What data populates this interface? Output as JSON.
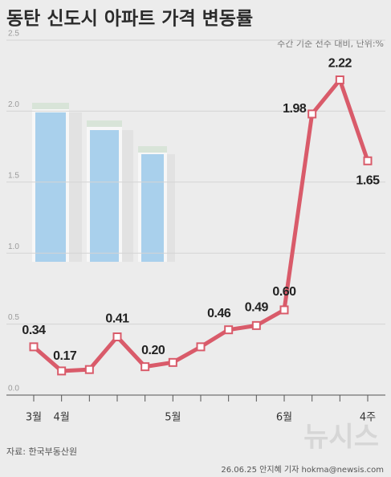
{
  "chart_data": {
    "type": "line",
    "title": "동탄 신도시 아파트 가격 변동률",
    "subtitle": "주간 기준 전주 대비, 단위:%",
    "categories": [
      "3월",
      "4월",
      null,
      null,
      null,
      "5월",
      null,
      null,
      null,
      "6월",
      null,
      null,
      "4주"
    ],
    "values": [
      0.34,
      0.17,
      0.18,
      0.41,
      0.2,
      0.23,
      0.34,
      0.46,
      0.49,
      0.6,
      1.98,
      2.22,
      1.65
    ],
    "value_labels": [
      "0.34",
      "0.17",
      null,
      "0.41",
      "0.20",
      null,
      null,
      "0.46",
      "0.49",
      "0.60",
      "1.98",
      "2.22",
      "1.65"
    ],
    "color": "#d95b6a",
    "ylim": [
      0,
      2.5
    ],
    "yticks": [
      {
        "value": 0,
        "label": "0.0"
      },
      0.5,
      {
        "value": 1,
        "label": "1.0"
      },
      1.5,
      {
        "value": 2,
        "label": "2.0"
      },
      2.5
    ],
    "grid": true,
    "source": "자료: 한국부동산원",
    "credit": "26.06.25 안지혜 기자 hokma@newsis.com",
    "watermark": "뉴시스"
  }
}
